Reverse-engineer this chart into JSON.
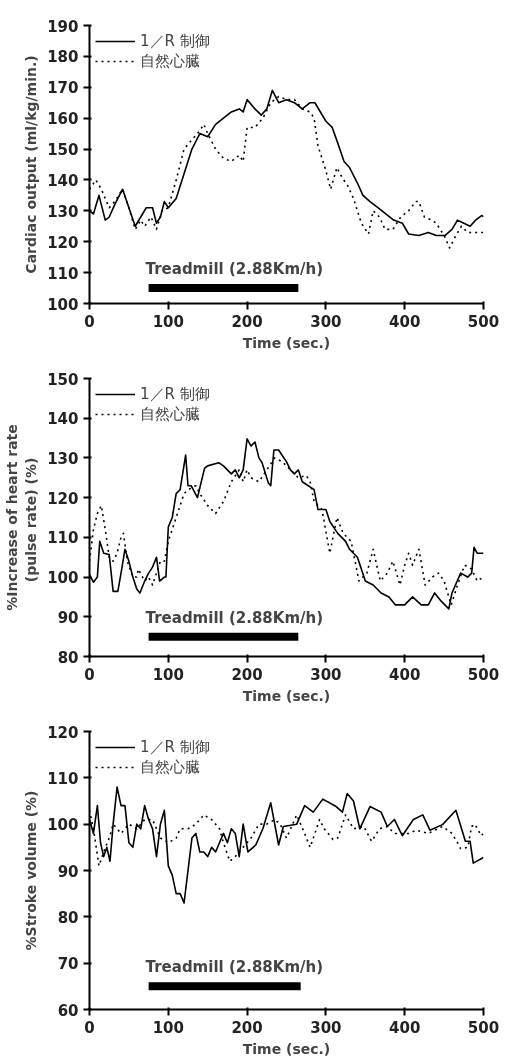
{
  "chart_data": [
    {
      "type": "line",
      "xlabel": "Time (sec.)",
      "ylabel": "Cardiac output (ml/kg/min.)",
      "xlim": [
        0,
        500
      ],
      "ylim": [
        100,
        190
      ],
      "xticks": [
        0,
        100,
        200,
        300,
        400,
        500
      ],
      "yticks": [
        100,
        110,
        120,
        130,
        140,
        150,
        160,
        170,
        180,
        190
      ],
      "grid": false,
      "legend": "top left",
      "annotations": [
        "Treadmill (2.88Km/h)"
      ],
      "series": [
        {
          "color": "#000000",
          "line_style": "solid",
          "x": [
            75,
            265
          ],
          "values": [
            105,
            105
          ]
        },
        {
          "name": "1／R 制御",
          "color": "#000000",
          "line_style": "solid",
          "x": [
            0,
            5,
            12,
            20,
            25,
            32,
            42,
            50,
            58,
            65,
            72,
            80,
            85,
            90,
            95,
            100,
            110,
            120,
            130,
            140,
            150,
            160,
            170,
            180,
            190,
            195,
            200,
            210,
            218,
            225,
            232,
            240,
            250,
            260,
            270,
            280,
            286,
            293,
            300,
            308,
            315,
            323,
            330,
            340,
            347,
            356,
            366,
            376,
            386,
            397,
            405,
            418,
            430,
            440,
            451,
            460,
            467,
            475,
            483,
            490,
            498,
            500
          ],
          "values": [
            130,
            129,
            135,
            127,
            128,
            132,
            137,
            131,
            125,
            128,
            131,
            131,
            126,
            128,
            133,
            131,
            134,
            142,
            150,
            155,
            154,
            158,
            160,
            162,
            163,
            162,
            166,
            163,
            161,
            163,
            169,
            165,
            166,
            165,
            163,
            165,
            165,
            162,
            159,
            157,
            152,
            146,
            144,
            139,
            135,
            133,
            131,
            129,
            127,
            126,
            122.5,
            122,
            123,
            122,
            122,
            124,
            127,
            126,
            125,
            127,
            128.5,
            128
          ]
        },
        {
          "name": "自然心臓",
          "color": "#000000",
          "line_style": "dotted",
          "x": [
            0,
            8,
            15,
            25,
            32,
            42,
            50,
            58,
            65,
            70,
            78,
            85,
            92,
            100,
            110,
            120,
            130,
            140,
            145,
            150,
            160,
            170,
            180,
            190,
            195,
            200,
            210,
            220,
            230,
            240,
            250,
            260,
            270,
            280,
            285,
            290,
            300,
            306,
            314,
            320,
            328,
            335,
            345,
            354,
            360,
            368,
            375,
            385,
            395,
            405,
            414,
            418,
            425,
            434,
            440,
            450,
            457,
            465,
            472,
            480,
            490,
            500
          ],
          "values": [
            137,
            140,
            137,
            131,
            133,
            137,
            131,
            124,
            127,
            125,
            128,
            124,
            130,
            131,
            140,
            150,
            153,
            156,
            158,
            155,
            150,
            147,
            146,
            148,
            146,
            157,
            157,
            160,
            165,
            167,
            166,
            166,
            163,
            162,
            160,
            151,
            143,
            137,
            144,
            141,
            138,
            134,
            126,
            122.5,
            130,
            128,
            124,
            124,
            128,
            130,
            133,
            133,
            128,
            127,
            126,
            122,
            118,
            122,
            125,
            123,
            123,
            123
          ]
        }
      ]
    },
    {
      "type": "line",
      "xlabel": "Time (sec.)",
      "ylabel": "%Increase of heart rate\n(pulse rate)  (%)",
      "xlim": [
        0,
        500
      ],
      "ylim": [
        80,
        150
      ],
      "xticks": [
        0,
        100,
        200,
        300,
        400,
        500
      ],
      "yticks": [
        80,
        90,
        100,
        110,
        120,
        130,
        140,
        150
      ],
      "grid": false,
      "legend": "top left",
      "annotations": [
        "Treadmill (2.88Km/h)"
      ],
      "series": [
        {
          "color": "#000000",
          "line_style": "solid",
          "x": [
            75,
            265
          ],
          "values": [
            85,
            85
          ]
        },
        {
          "name": "1／R 制御",
          "color": "#000000",
          "line_style": "solid",
          "x": [
            0,
            5,
            10,
            13,
            18,
            25,
            30,
            36,
            40,
            45,
            50,
            55,
            60,
            64,
            70,
            75,
            80,
            85,
            89,
            95,
            97,
            100,
            105,
            110,
            115,
            122,
            125,
            129,
            137,
            146,
            150,
            164,
            170,
            180,
            185,
            190,
            195,
            200,
            205,
            210,
            215,
            219,
            227,
            230,
            234,
            240,
            250,
            255,
            260,
            265,
            270,
            285,
            290,
            300,
            305,
            315,
            325,
            330,
            340,
            350,
            360,
            370,
            380,
            388,
            400,
            410,
            421,
            430,
            438,
            446,
            456,
            460,
            471,
            480,
            485,
            488,
            492,
            500
          ],
          "values": [
            100.6,
            98.7,
            100,
            109,
            106,
            105.7,
            96.4,
            96.4,
            101,
            107,
            104,
            100,
            97,
            96,
            99,
            101,
            102.5,
            105,
            99,
            100,
            100,
            112.6,
            115,
            121,
            122,
            130.7,
            123,
            123,
            120,
            127.4,
            128,
            128.8,
            128,
            126,
            127,
            125,
            127,
            134.8,
            133,
            134,
            130,
            128.8,
            123.7,
            123,
            132,
            132,
            129,
            127,
            126,
            127,
            124,
            122,
            117,
            117,
            114,
            111,
            109,
            107,
            105,
            99,
            98,
            96,
            95,
            93,
            93,
            95,
            93,
            93,
            96,
            94,
            92,
            96,
            101,
            100,
            101,
            107.5,
            106,
            106
          ]
        },
        {
          "name": "自然心臓",
          "color": "#000000",
          "line_style": "dotted",
          "x": [
            0,
            5,
            10,
            15,
            20,
            25,
            30,
            35,
            40,
            43,
            48,
            55,
            60,
            62,
            70,
            75,
            80,
            85,
            90,
            95,
            100,
            110,
            120,
            125,
            135,
            140,
            150,
            160,
            170,
            180,
            190,
            195,
            200,
            205,
            215,
            225,
            235,
            245,
            255,
            265,
            275,
            280,
            285,
            295,
            305,
            314,
            322,
            332,
            342,
            352,
            360,
            369,
            378,
            385,
            394,
            400,
            405,
            410,
            418,
            426,
            435,
            443,
            450,
            459,
            467,
            476,
            485,
            492,
            500
          ],
          "values": [
            104,
            112,
            116,
            118,
            112,
            105,
            104,
            106,
            110,
            111,
            104,
            100,
            100,
            102,
            99,
            100,
            98,
            101,
            104,
            104,
            109,
            115,
            121,
            122,
            123,
            121,
            118,
            116,
            119,
            124,
            127,
            124,
            127,
            125,
            124,
            127,
            130,
            129,
            127,
            125,
            125.6,
            124,
            119,
            117,
            106,
            115,
            111,
            109,
            99,
            101,
            107,
            99,
            101,
            104,
            98,
            103,
            106,
            103,
            107,
            98,
            100,
            101,
            99,
            93,
            98,
            103,
            102,
            99,
            100
          ]
        }
      ]
    },
    {
      "type": "line",
      "xlabel": "Time (sec.)",
      "ylabel": "%Stroke volume (%)",
      "xlim": [
        0,
        500
      ],
      "ylim": [
        60,
        120
      ],
      "xticks": [
        0,
        100,
        200,
        300,
        400,
        500
      ],
      "yticks": [
        60,
        70,
        80,
        90,
        100,
        110,
        120
      ],
      "grid": false,
      "legend": "top left",
      "annotations": [
        "Treadmill (2.88Km/h)"
      ],
      "series": [
        {
          "color": "#000000",
          "line_style": "solid",
          "x": [
            75,
            268
          ],
          "values": [
            65,
            65
          ]
        },
        {
          "name": "1／R 制御",
          "color": "#000000",
          "line_style": "solid",
          "x": [
            0,
            5,
            10,
            14,
            18,
            22,
            26,
            30,
            35,
            40,
            45,
            50,
            55,
            60,
            65,
            70,
            75,
            80,
            85,
            90,
            95,
            100,
            105,
            110,
            115,
            120,
            125,
            130,
            135,
            140,
            145,
            150,
            155,
            160,
            165,
            170,
            175,
            180,
            185,
            190,
            195,
            201,
            211,
            220,
            230,
            240,
            246,
            263,
            273,
            284,
            296,
            313,
            321,
            327,
            335,
            343,
            356,
            370,
            378,
            387,
            397,
            411,
            423,
            432,
            448,
            465,
            477,
            483,
            487,
            500
          ],
          "values": [
            101,
            98,
            104,
            96,
            93,
            95,
            92,
            100,
            108,
            104,
            104,
            96,
            95,
            100,
            99,
            104,
            101,
            99,
            93,
            100,
            103,
            91,
            89,
            85,
            85,
            83,
            90,
            97,
            98,
            94,
            94,
            93,
            95,
            94,
            96,
            98,
            96,
            99,
            98,
            93,
            100,
            94,
            95.5,
            99,
            104.6,
            95.5,
            99.5,
            100,
            104,
            102.6,
            105.4,
            103.8,
            102.6,
            106.6,
            105,
            99,
            103.8,
            102.6,
            99.5,
            101,
            97.5,
            101,
            102,
            98.7,
            99.9,
            103,
            96.3,
            96.3,
            91.6,
            92.8
          ]
        },
        {
          "name": "自然心臓",
          "color": "#000000",
          "line_style": "dotted",
          "x": [
            0,
            5,
            12,
            18,
            25,
            30,
            40,
            50,
            60,
            70,
            80,
            90,
            100,
            110,
            115,
            125,
            135,
            145,
            155,
            165,
            170,
            178,
            185,
            195,
            205,
            215,
            225,
            235,
            242,
            250,
            263,
            273,
            280,
            292,
            298,
            309,
            315,
            325,
            335,
            348,
            358,
            368,
            378,
            387,
            397,
            405,
            415,
            430,
            448,
            460,
            467,
            471,
            480,
            485,
            489,
            497,
            500
          ],
          "values": [
            103,
            99,
            91,
            94,
            97,
            100,
            98,
            100,
            99,
            101,
            101,
            97,
            96,
            97,
            99,
            99,
            100,
            102,
            101,
            99,
            96,
            92,
            93,
            95,
            97,
            100,
            100,
            101,
            100,
            97,
            102,
            98,
            95,
            101,
            99,
            96.7,
            97,
            102,
            99,
            99.5,
            96.3,
            99,
            99.5,
            98,
            98,
            98,
            98.7,
            98,
            99.5,
            98,
            96,
            94.7,
            95,
            99.5,
            100,
            97.5,
            98
          ]
        }
      ]
    }
  ]
}
